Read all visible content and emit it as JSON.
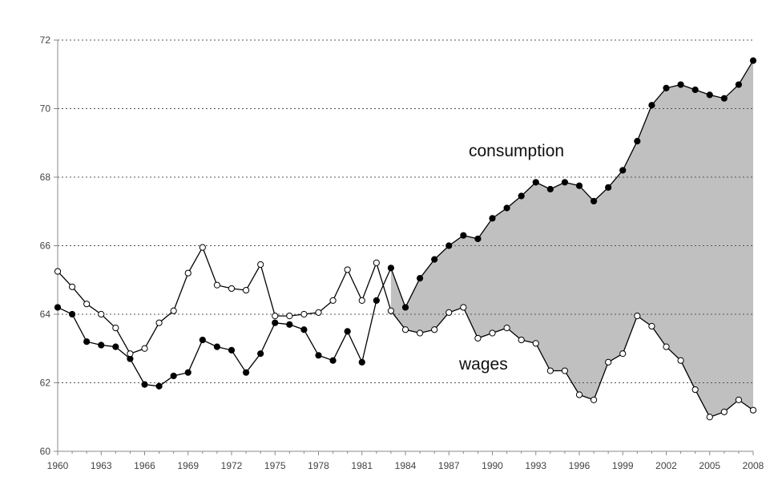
{
  "chart_data": {
    "type": "line",
    "title": "",
    "xlabel": "",
    "ylabel": "",
    "x": [
      1960,
      1961,
      1962,
      1963,
      1964,
      1965,
      1966,
      1967,
      1968,
      1969,
      1970,
      1971,
      1972,
      1973,
      1974,
      1975,
      1976,
      1977,
      1978,
      1979,
      1980,
      1981,
      1982,
      1983,
      1984,
      1985,
      1986,
      1987,
      1988,
      1989,
      1990,
      1991,
      1992,
      1993,
      1994,
      1995,
      1996,
      1997,
      1998,
      1999,
      2000,
      2001,
      2002,
      2003,
      2004,
      2005,
      2006,
      2007,
      2008
    ],
    "xlim": [
      1960,
      2008
    ],
    "ylim": [
      60,
      72
    ],
    "x_tick_labels": [
      "1960",
      "1963",
      "1966",
      "1969",
      "1972",
      "1975",
      "1978",
      "1981",
      "1984",
      "1987",
      "1990",
      "1993",
      "1996",
      "1999",
      "2002",
      "2005",
      "2008"
    ],
    "y_tick_labels": [
      "60",
      "62",
      "64",
      "66",
      "68",
      "70",
      "72"
    ],
    "grid": "horizontal dotted",
    "shaded_region": "between consumption and wages, from 1983 to 2008",
    "series": [
      {
        "name": "consumption",
        "marker": "filled circle",
        "values": [
          64.2,
          64.0,
          63.2,
          63.1,
          63.05,
          62.7,
          61.95,
          61.9,
          62.2,
          62.3,
          63.25,
          63.05,
          62.95,
          62.3,
          62.85,
          63.75,
          63.7,
          63.55,
          62.8,
          62.65,
          63.5,
          62.6,
          64.4,
          65.35,
          64.2,
          65.05,
          65.6,
          66.0,
          66.3,
          66.2,
          66.8,
          67.1,
          67.45,
          67.85,
          67.65,
          67.85,
          67.75,
          67.3,
          67.7,
          68.2,
          69.05,
          70.1,
          70.6,
          70.7,
          70.55,
          70.4,
          70.3,
          70.7,
          71.4
        ]
      },
      {
        "name": "wages",
        "marker": "open circle",
        "values": [
          65.25,
          64.8,
          64.3,
          64.0,
          63.6,
          62.85,
          63.0,
          63.75,
          64.1,
          65.2,
          65.95,
          64.85,
          64.75,
          64.7,
          65.45,
          63.95,
          63.95,
          64.0,
          64.05,
          64.4,
          65.3,
          64.4,
          65.5,
          64.1,
          63.55,
          63.45,
          63.55,
          64.05,
          64.2,
          63.3,
          63.45,
          63.6,
          63.25,
          63.15,
          62.35,
          62.35,
          61.65,
          61.5,
          62.6,
          62.85,
          63.95,
          63.65,
          63.05,
          62.65,
          61.8,
          61.0,
          61.15,
          61.5,
          61.2
        ]
      }
    ]
  },
  "labels": {
    "consumption": "consumption",
    "wages": "wages"
  },
  "colors": {
    "shade": "#c0c0c0",
    "line": "#000000",
    "grid": "#555555",
    "axis": "#888888"
  }
}
